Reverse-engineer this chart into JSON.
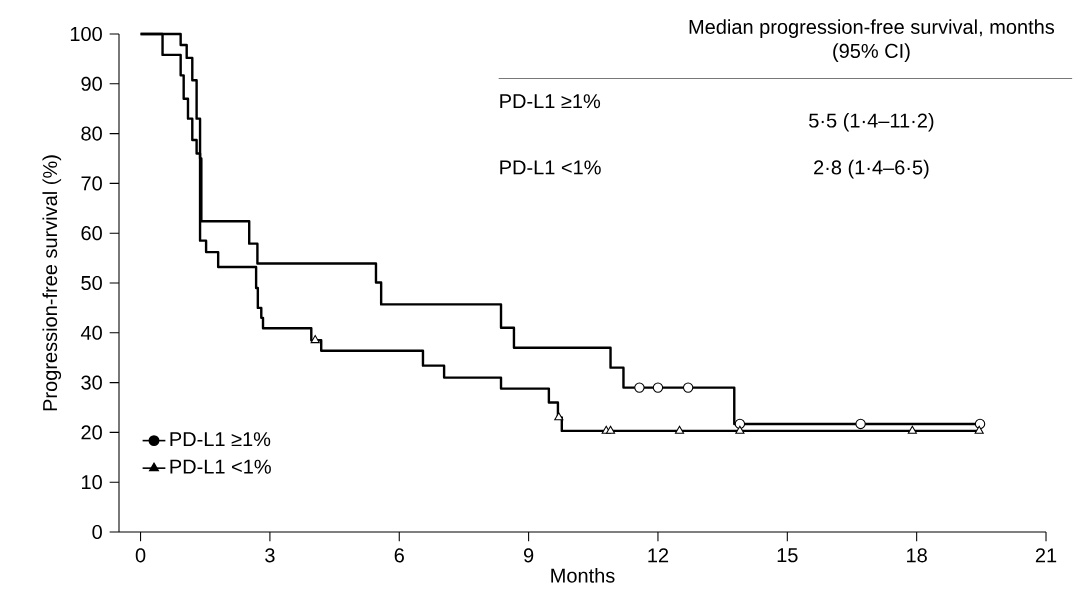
{
  "chart_data": {
    "type": "step",
    "xlabel": "Months",
    "ylabel": "Progression-free survival (%)",
    "xlim": [
      -0.5,
      21
    ],
    "ylim": [
      0,
      100
    ],
    "xticks": [
      0,
      3,
      6,
      9,
      12,
      15,
      18,
      21
    ],
    "yticks": [
      0,
      10,
      20,
      30,
      40,
      50,
      60,
      70,
      80,
      90,
      100
    ],
    "legend": "bottom left",
    "series": [
      {
        "name": "PD-L1 ≥1%",
        "color": "#000000",
        "x": [
          0,
          0.93,
          1.07,
          1.2,
          1.3,
          1.38,
          1.41,
          2.52,
          2.71,
          5.46,
          5.58,
          8.36,
          8.66,
          10.9,
          11.2,
          13.77,
          19.5
        ],
        "values": [
          100,
          97.8,
          95.2,
          90.7,
          83,
          75,
          62.4,
          57.9,
          53.9,
          50.1,
          45.7,
          41,
          37,
          33,
          29,
          21.7,
          21.7
        ]
      },
      {
        "type": "scatter",
        "color": "#000000",
        "marker": "circle",
        "x": [
          11.57,
          12.0,
          12.7,
          13.9,
          16.7,
          19.47
        ],
        "values": [
          29,
          29,
          29,
          21.7,
          21.7,
          21.7
        ]
      },
      {
        "name": "PD-L1 <1%",
        "color": "#000000",
        "x": [
          0,
          0.51,
          0.93,
          1.0,
          1.1,
          1.2,
          1.3,
          1.38,
          1.52,
          1.8,
          2.68,
          2.72,
          2.8,
          2.84,
          3.96,
          4.19,
          6.55,
          7.04,
          8.36,
          9.47,
          9.68,
          9.77,
          19.5
        ],
        "values": [
          100,
          95.8,
          91.7,
          87,
          83,
          78.7,
          76,
          58.5,
          56.2,
          53.2,
          49,
          45,
          43,
          40.9,
          38.5,
          36.4,
          33.4,
          31,
          28.8,
          26,
          23,
          20.3,
          20.3
        ]
      },
      {
        "type": "scatter",
        "color": "#000000",
        "marker": "triangle",
        "x": [
          4.05,
          9.7,
          10.8,
          10.9,
          12.5,
          13.9,
          17.9,
          19.45
        ],
        "values": [
          38.5,
          23,
          20.3,
          20.3,
          20.3,
          20.3,
          20.3,
          20.3
        ]
      }
    ],
    "annotations": [
      "Median progression-free survival, months (95% CI)",
      "PD-L1 ≥1%",
      "5·5 (1·4–11·2)",
      "PD-L1 <1%",
      "2·8 (1·4–6·5)"
    ]
  }
}
